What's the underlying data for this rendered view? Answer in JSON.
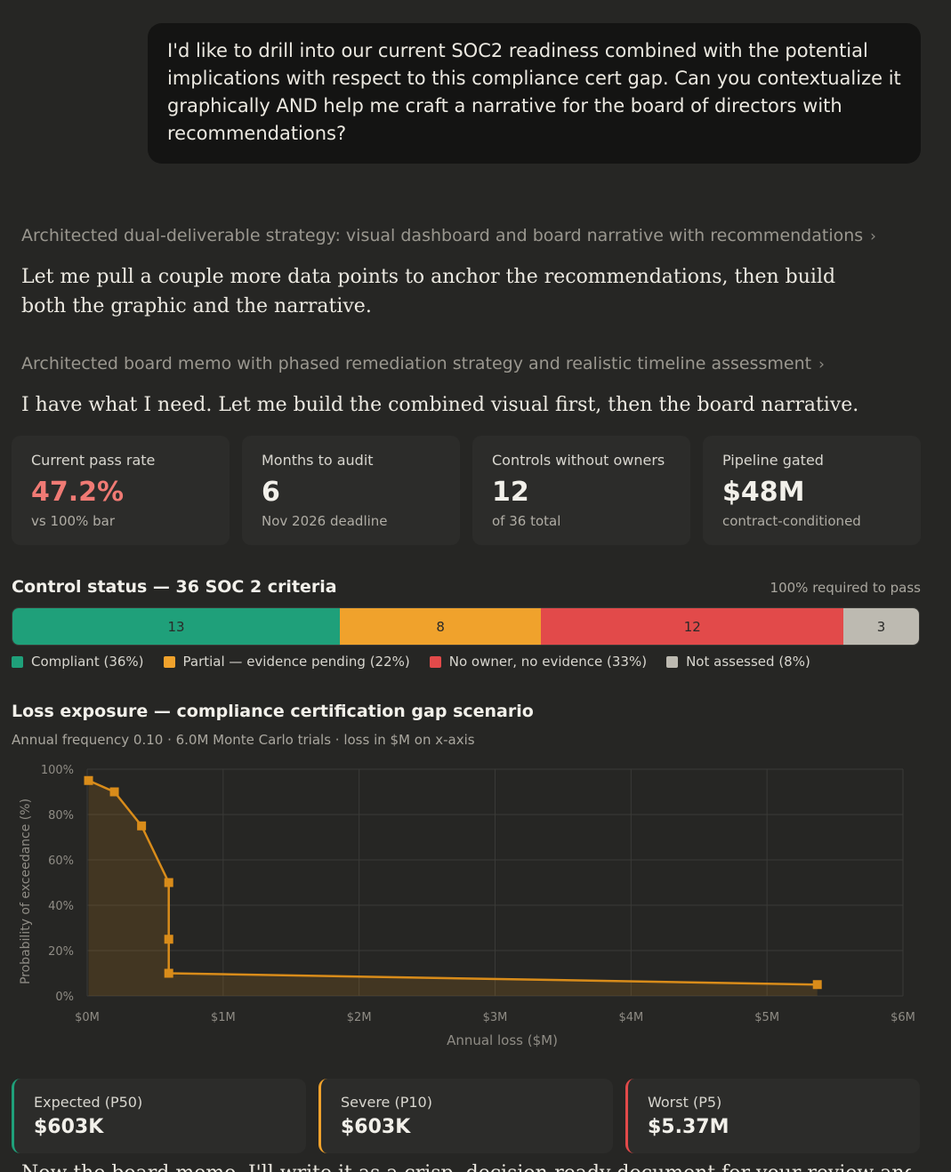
{
  "user_message": "I'd like to drill into our current SOC2 readiness combined with the potential implications with respect to this compliance cert gap. Can you contextualize it graphically AND help me craft a narrative for the board of directors with recommendations?",
  "thinking": [
    {
      "label": "Architected dual-deliverable strategy: visual dashboard and board narrative with recommendations"
    },
    {
      "label": "Architected board memo with phased remediation strategy and realistic timeline assessment"
    }
  ],
  "assistant_text": [
    "Let me pull a couple more data points to anchor the recommendations, then build both the graphic and the narrative.",
    "I have what I need. Let me build the combined visual first, then the board narrative."
  ],
  "metrics": [
    {
      "label": "Current pass rate",
      "value": "47.2%",
      "sub": "vs 100% bar",
      "color": "#f07a74"
    },
    {
      "label": "Months to audit",
      "value": "6",
      "sub": "Nov 2026 deadline"
    },
    {
      "label": "Controls without owners",
      "value": "12",
      "sub": "of 36 total"
    },
    {
      "label": "Pipeline gated",
      "value": "$48M",
      "sub": "contract-conditioned"
    }
  ],
  "control_status": {
    "title": "Control status — 36 SOC 2 criteria",
    "note": "100% required to pass",
    "segments": [
      {
        "value": 13,
        "label": "13",
        "legend": "Compliant (36%)",
        "color": "#1fa07a"
      },
      {
        "value": 8,
        "label": "8",
        "legend": "Partial — evidence pending (22%)",
        "color": "#f0a22c"
      },
      {
        "value": 12,
        "label": "12",
        "legend": "No owner, no evidence (33%)",
        "color": "#e24a4a"
      },
      {
        "value": 3,
        "label": "3",
        "legend": "Not assessed (8%)",
        "color": "#bdbab1"
      }
    ]
  },
  "loss_exposure": {
    "title": "Loss exposure — compliance certification gap scenario",
    "subtitle": "Annual frequency 0.10 · 6.0M Monte Carlo trials · loss in $M on x-axis"
  },
  "chart_data": {
    "type": "line",
    "xlabel": "Annual loss ($M)",
    "ylabel": "Probability of exceedance (%)",
    "xlim": [
      0,
      6
    ],
    "ylim": [
      0,
      100
    ],
    "x_ticks": [
      "$0M",
      "$1M",
      "$2M",
      "$3M",
      "$4M",
      "$5M",
      "$6M"
    ],
    "y_ticks": [
      "0%",
      "20%",
      "40%",
      "60%",
      "80%",
      "100%"
    ],
    "grid": true,
    "color": "#d98c1a",
    "series": [
      {
        "x": [
          0.01,
          0.2,
          0.4,
          0.6,
          0.6,
          0.6,
          5.37
        ],
        "y": [
          95,
          90,
          75,
          50,
          25,
          10,
          5
        ]
      }
    ]
  },
  "stats": [
    {
      "label": "Expected (P50)",
      "value": "$603K",
      "color": "#1fa07a"
    },
    {
      "label": "Severe (P10)",
      "value": "$603K",
      "color": "#f0a22c"
    },
    {
      "label": "Worst (P5)",
      "value": "$5.37M",
      "color": "#e24a4a"
    }
  ],
  "trailing_text": "Now the board memo. I'll write it as a crisp, decision-ready document for your review and edits."
}
